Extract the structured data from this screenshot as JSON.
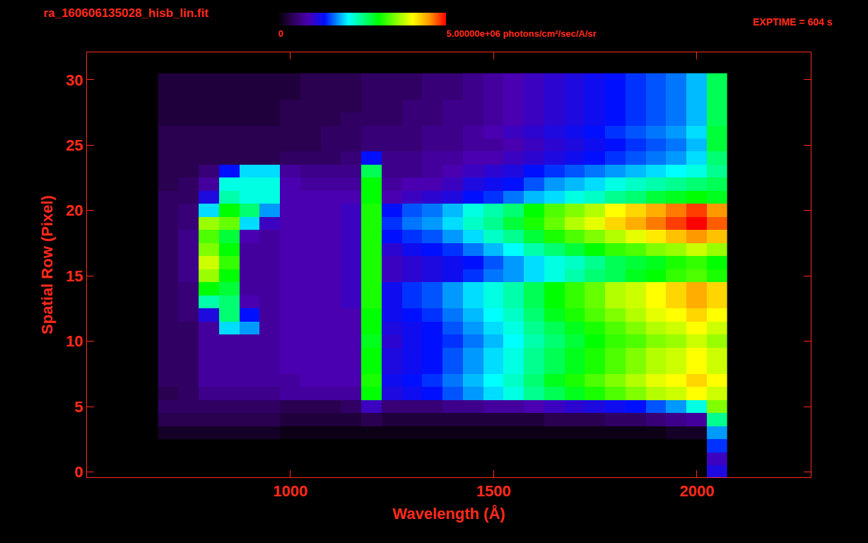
{
  "chart_data": {
    "type": "heatmap",
    "title": "ra_160606135028_hisb_lin.fit",
    "annotations": [
      {
        "text": "EXPTIME = 604 s"
      }
    ],
    "x_label": "Wavelength (Å)",
    "y_label": "Spatial Row (Pixel)",
    "xlim": [
      500,
      2280
    ],
    "xticks": [
      1000,
      1500,
      2000
    ],
    "ylim": [
      -0.4,
      32.1
    ],
    "yticks": [
      0,
      5,
      10,
      15,
      20,
      25,
      30
    ],
    "grid": false,
    "colorbar_range": [
      0,
      5000000
    ],
    "colorbar_ticks": [
      0,
      {
        "value": 5000000,
        "label": "5.00000e+06 photons/cm²/sec/A/sr"
      }
    ],
    "x": [
      700,
      750,
      800,
      850,
      900,
      950,
      1000,
      1050,
      1100,
      1150,
      1200,
      1250,
      1300,
      1350,
      1400,
      1450,
      1500,
      1550,
      1600,
      1650,
      1700,
      1750,
      1800,
      1850,
      1900,
      1950,
      2000,
      2050
    ],
    "y": [
      0,
      1,
      2,
      3,
      4,
      5,
      6,
      7,
      8,
      9,
      10,
      11,
      12,
      13,
      14,
      15,
      16,
      17,
      18,
      19,
      20,
      21,
      22,
      23,
      24,
      25,
      26,
      27,
      28,
      29,
      30
    ],
    "cells": [
      [
        0,
        0,
        0,
        0,
        0,
        0,
        0,
        0,
        0,
        0,
        0,
        0,
        0,
        0,
        0,
        0,
        0,
        0,
        0,
        0,
        0,
        0,
        0,
        0,
        0,
        0,
        0,
        1200000
      ],
      [
        0,
        0,
        0,
        0,
        0,
        0,
        0,
        0,
        0,
        0,
        0,
        0,
        0,
        0,
        0,
        0,
        0,
        0,
        0,
        0,
        0,
        0,
        0,
        0,
        0,
        0,
        0,
        1000000
      ],
      [
        0,
        0,
        0,
        0,
        0,
        0,
        0,
        0,
        0,
        0,
        0,
        0,
        0,
        0,
        0,
        0,
        0,
        0,
        0,
        0,
        0,
        0,
        0,
        0,
        0,
        0,
        0,
        1500000
      ],
      [
        200000,
        200000,
        200000,
        200000,
        200000,
        200000,
        100000,
        100000,
        100000,
        100000,
        100000,
        100000,
        100000,
        100000,
        100000,
        100000,
        100000,
        100000,
        100000,
        100000,
        100000,
        100000,
        100000,
        100000,
        100000,
        200000,
        200000,
        1800000
      ],
      [
        400000,
        400000,
        400000,
        400000,
        400000,
        400000,
        300000,
        300000,
        300000,
        300000,
        400000,
        300000,
        300000,
        300000,
        300000,
        300000,
        300000,
        300000,
        300000,
        400000,
        400000,
        400000,
        500000,
        500000,
        600000,
        700000,
        800000,
        2500000
      ],
      [
        500000,
        500000,
        500000,
        500000,
        500000,
        500000,
        400000,
        400000,
        400000,
        500000,
        1000000,
        600000,
        600000,
        600000,
        700000,
        700000,
        800000,
        800000,
        900000,
        1000000,
        1100000,
        1200000,
        1300000,
        1400000,
        1600000,
        1800000,
        2200000,
        3500000
      ],
      [
        400000,
        500000,
        700000,
        700000,
        700000,
        700000,
        800000,
        800000,
        800000,
        800000,
        3000000,
        1200000,
        1300000,
        1400000,
        1600000,
        1800000,
        2000000,
        2200000,
        2500000,
        2700000,
        2900000,
        3100000,
        3300000,
        3500000,
        3700000,
        3800000,
        4000000,
        3800000
      ],
      [
        500000,
        500000,
        800000,
        800000,
        800000,
        800000,
        800000,
        900000,
        900000,
        900000,
        3100000,
        1300000,
        1400000,
        1500000,
        1700000,
        1900000,
        2100000,
        2300000,
        2600000,
        2900000,
        3100000,
        3300000,
        3500000,
        3700000,
        3900000,
        4000000,
        4200000,
        4000000
      ],
      [
        500000,
        500000,
        800000,
        800000,
        800000,
        800000,
        900000,
        900000,
        900000,
        900000,
        3000000,
        1200000,
        1300000,
        1400000,
        1600000,
        1800000,
        2000000,
        2200000,
        2500000,
        2700000,
        2900000,
        3100000,
        3300000,
        3500000,
        3700000,
        3800000,
        4000000,
        3800000
      ],
      [
        500000,
        500000,
        800000,
        800000,
        800000,
        800000,
        900000,
        900000,
        900000,
        900000,
        3000000,
        1200000,
        1300000,
        1400000,
        1600000,
        1800000,
        2000000,
        2200000,
        2500000,
        2700000,
        2900000,
        3100000,
        3300000,
        3500000,
        3700000,
        3800000,
        4000000,
        3800000
      ],
      [
        500000,
        500000,
        800000,
        800000,
        800000,
        800000,
        900000,
        900000,
        900000,
        900000,
        2900000,
        1100000,
        1300000,
        1400000,
        1500000,
        1700000,
        1900000,
        2100000,
        2400000,
        2600000,
        2800000,
        3000000,
        3200000,
        3300000,
        3500000,
        3600000,
        3800000,
        3600000
      ],
      [
        500000,
        500000,
        800000,
        2000000,
        1800000,
        800000,
        900000,
        900000,
        900000,
        900000,
        3000000,
        1200000,
        1300000,
        1400000,
        1600000,
        1800000,
        2000000,
        2200000,
        2500000,
        2700000,
        2900000,
        3100000,
        3300000,
        3500000,
        3700000,
        3800000,
        4000000,
        3800000
      ],
      [
        500000,
        600000,
        1200000,
        2600000,
        1400000,
        800000,
        900000,
        900000,
        900000,
        900000,
        3000000,
        1300000,
        1400000,
        1500000,
        1700000,
        1900000,
        2100000,
        2300000,
        2600000,
        2900000,
        3100000,
        3300000,
        3500000,
        3700000,
        3900000,
        4000000,
        4200000,
        4000000
      ],
      [
        500000,
        600000,
        2400000,
        2600000,
        900000,
        800000,
        900000,
        900000,
        900000,
        1000000,
        3100000,
        1300000,
        1500000,
        1600000,
        1800000,
        2000000,
        2200000,
        2400000,
        2700000,
        3000000,
        3200000,
        3400000,
        3700000,
        3800000,
        4000000,
        4200000,
        4400000,
        4200000
      ],
      [
        500000,
        600000,
        3000000,
        2800000,
        800000,
        800000,
        900000,
        900000,
        900000,
        1000000,
        3100000,
        1300000,
        1500000,
        1600000,
        1800000,
        2000000,
        2200000,
        2400000,
        2700000,
        3000000,
        3200000,
        3400000,
        3700000,
        3800000,
        4000000,
        4200000,
        4400000,
        4200000
      ],
      [
        500000,
        700000,
        3600000,
        3000000,
        800000,
        800000,
        900000,
        900000,
        900000,
        1000000,
        3100000,
        1000000,
        1100000,
        1200000,
        1300000,
        1500000,
        1700000,
        1800000,
        2000000,
        2200000,
        2400000,
        2600000,
        2700000,
        2900000,
        3000000,
        3200000,
        3300000,
        3100000
      ],
      [
        500000,
        700000,
        3800000,
        3200000,
        800000,
        800000,
        900000,
        900000,
        900000,
        1000000,
        3100000,
        1000000,
        1100000,
        1200000,
        1300000,
        1400000,
        1600000,
        1800000,
        2000000,
        2200000,
        2300000,
        2500000,
        2700000,
        2800000,
        2900000,
        3100000,
        3200000,
        3000000
      ],
      [
        500000,
        700000,
        3500000,
        3000000,
        800000,
        800000,
        900000,
        900000,
        900000,
        1000000,
        3100000,
        1100000,
        1300000,
        1400000,
        1500000,
        1700000,
        1900000,
        2100000,
        2400000,
        2600000,
        2800000,
        3000000,
        3200000,
        3300000,
        3500000,
        3600000,
        3800000,
        3600000
      ],
      [
        500000,
        700000,
        3300000,
        2800000,
        900000,
        800000,
        900000,
        900000,
        900000,
        1000000,
        3100000,
        1400000,
        1500000,
        1600000,
        1800000,
        2000000,
        2300000,
        2500000,
        2800000,
        3100000,
        3300000,
        3500000,
        3700000,
        3900000,
        4100000,
        4300000,
        4500000,
        4300000
      ],
      [
        500000,
        600000,
        3600000,
        3400000,
        2000000,
        1000000,
        900000,
        900000,
        900000,
        1000000,
        3100000,
        1500000,
        1700000,
        1800000,
        2000000,
        2300000,
        2500000,
        2800000,
        3100000,
        3400000,
        3700000,
        3900000,
        4200000,
        4400000,
        4600000,
        4800000,
        5000000,
        4700000
      ],
      [
        500000,
        600000,
        2000000,
        3000000,
        2600000,
        1800000,
        900000,
        900000,
        900000,
        1000000,
        3100000,
        1400000,
        1600000,
        1700000,
        1900000,
        2200000,
        2400000,
        2600000,
        3000000,
        3300000,
        3500000,
        3700000,
        4000000,
        4200000,
        4400000,
        4600000,
        4800000,
        4500000
      ],
      [
        500000,
        500000,
        1200000,
        2400000,
        2200000,
        2200000,
        900000,
        900000,
        900000,
        900000,
        3000000,
        900000,
        1000000,
        1100000,
        1200000,
        1400000,
        1500000,
        1700000,
        1900000,
        2000000,
        2200000,
        2300000,
        2500000,
        2600000,
        2800000,
        2900000,
        3000000,
        2900000
      ],
      [
        400000,
        500000,
        800000,
        2200000,
        2200000,
        2200000,
        900000,
        800000,
        800000,
        800000,
        3000000,
        800000,
        900000,
        900000,
        1000000,
        1200000,
        1300000,
        1400000,
        1600000,
        1800000,
        1900000,
        2000000,
        2200000,
        2300000,
        2400000,
        2500000,
        2600000,
        2700000
      ],
      [
        400000,
        400000,
        600000,
        1400000,
        2000000,
        2000000,
        800000,
        700000,
        700000,
        700000,
        2700000,
        700000,
        700000,
        800000,
        900000,
        1000000,
        1100000,
        1200000,
        1400000,
        1500000,
        1600000,
        1700000,
        1800000,
        1900000,
        2000000,
        2100000,
        2200000,
        2500000
      ],
      [
        400000,
        400000,
        400000,
        400000,
        400000,
        400000,
        500000,
        500000,
        500000,
        600000,
        1400000,
        700000,
        700000,
        800000,
        800000,
        900000,
        900000,
        1000000,
        1100000,
        1200000,
        1300000,
        1400000,
        1500000,
        1600000,
        1700000,
        1800000,
        2000000,
        2600000
      ],
      [
        400000,
        400000,
        400000,
        400000,
        400000,
        400000,
        400000,
        400000,
        500000,
        500000,
        600000,
        600000,
        600000,
        700000,
        700000,
        800000,
        800000,
        900000,
        1000000,
        1100000,
        1200000,
        1300000,
        1400000,
        1500000,
        1600000,
        1700000,
        1900000,
        2800000
      ],
      [
        400000,
        400000,
        400000,
        400000,
        400000,
        400000,
        400000,
        400000,
        500000,
        500000,
        600000,
        600000,
        600000,
        700000,
        700000,
        800000,
        900000,
        1000000,
        1100000,
        1200000,
        1300000,
        1400000,
        1500000,
        1600000,
        1700000,
        1800000,
        2000000,
        2800000
      ],
      [
        300000,
        300000,
        300000,
        300000,
        300000,
        300000,
        400000,
        400000,
        400000,
        500000,
        500000,
        500000,
        600000,
        600000,
        700000,
        700000,
        800000,
        900000,
        1000000,
        1100000,
        1200000,
        1300000,
        1400000,
        1500000,
        1600000,
        1700000,
        1900000,
        2700000
      ],
      [
        300000,
        300000,
        300000,
        300000,
        300000,
        300000,
        400000,
        400000,
        400000,
        400000,
        500000,
        500000,
        600000,
        600000,
        700000,
        700000,
        800000,
        900000,
        1000000,
        1100000,
        1200000,
        1300000,
        1400000,
        1500000,
        1600000,
        1700000,
        1900000,
        2700000
      ],
      [
        300000,
        300000,
        300000,
        300000,
        300000,
        300000,
        300000,
        400000,
        400000,
        400000,
        500000,
        500000,
        500000,
        600000,
        600000,
        700000,
        800000,
        900000,
        1000000,
        1100000,
        1200000,
        1300000,
        1400000,
        1500000,
        1600000,
        1700000,
        1900000,
        2700000
      ],
      [
        300000,
        300000,
        300000,
        300000,
        300000,
        300000,
        300000,
        400000,
        400000,
        400000,
        500000,
        500000,
        500000,
        600000,
        600000,
        700000,
        800000,
        900000,
        1000000,
        1100000,
        1200000,
        1300000,
        1400000,
        1500000,
        1600000,
        1700000,
        1900000,
        2700000
      ]
    ]
  }
}
